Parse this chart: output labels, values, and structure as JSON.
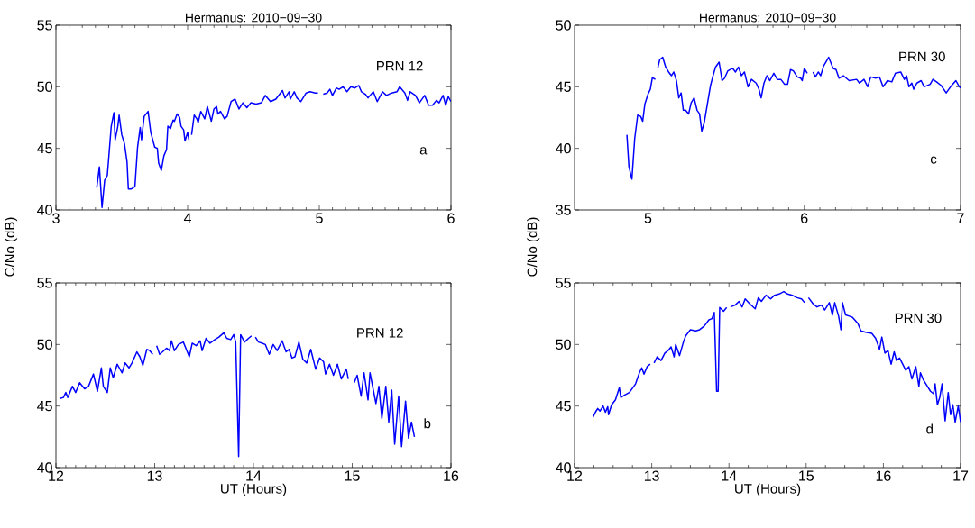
{
  "chart_data": [
    {
      "type": "line",
      "title": "Hermanus: 2010−09−30",
      "ylabel": "C/No (dB)",
      "annotations": [
        "PRN 12",
        "a"
      ],
      "color": "#0000ff",
      "xlim": [
        3,
        6
      ],
      "ylim": [
        40,
        55
      ],
      "xticks": [
        3,
        4,
        5,
        6
      ],
      "yticks": [
        40,
        45,
        50,
        55
      ],
      "x": [
        3.31,
        3.33,
        3.35,
        3.37,
        3.39,
        3.4,
        3.42,
        3.44,
        3.45,
        3.47,
        3.48,
        3.5,
        3.52,
        3.54,
        3.55,
        3.57,
        3.6,
        3.62,
        3.64,
        3.65,
        3.67,
        3.7,
        3.72,
        3.75,
        3.77,
        3.78,
        3.8,
        3.82,
        3.84,
        3.85,
        3.87,
        3.89,
        3.9,
        3.92,
        3.94,
        3.95,
        3.97,
        3.98,
        4.0,
        4.01,
        null,
        4.03,
        4.05,
        4.07,
        4.08,
        4.1,
        4.13,
        4.15,
        4.18,
        4.2,
        4.22,
        4.23,
        4.25,
        4.28,
        4.3,
        4.33,
        4.36,
        4.39,
        4.42,
        4.45,
        4.48,
        4.52,
        4.56,
        4.59,
        4.63,
        4.67,
        4.72,
        4.74,
        4.77,
        4.78,
        4.81,
        4.83,
        4.86,
        4.9,
        4.93,
        4.97,
        4.99,
        null,
        5.03,
        5.06,
        5.08,
        5.1,
        5.13,
        5.15,
        5.18,
        5.21,
        5.24,
        5.27,
        5.3,
        5.32,
        5.35,
        5.37,
        5.41,
        5.44,
        5.48,
        5.51,
        5.55,
        5.59,
        5.61,
        5.65,
        5.67,
        5.69,
        5.73,
        5.76,
        5.8,
        5.83,
        5.86,
        5.89,
        5.91,
        5.94,
        5.96,
        5.98,
        6.0
      ],
      "values": [
        41.8,
        43.5,
        40.2,
        42.4,
        42.8,
        44.1,
        46.8,
        47.9,
        45.7,
        46.8,
        47.7,
        46.1,
        45.4,
        43.9,
        41.7,
        41.7,
        41.9,
        45.1,
        46.7,
        45.7,
        47.6,
        48.0,
        46.3,
        45.1,
        45.0,
        43.8,
        43.2,
        44.4,
        44.9,
        46.8,
        46.6,
        47.3,
        47.2,
        47.8,
        47.5,
        46.8,
        46.5,
        45.6,
        46.3,
        45.7,
        null,
        46.1,
        47.7,
        47.4,
        47.1,
        48.0,
        47.4,
        48.4,
        47.2,
        48.2,
        48.4,
        47.8,
        48.0,
        47.4,
        47.6,
        48.8,
        49.0,
        48.2,
        48.7,
        48.3,
        48.7,
        48.6,
        48.7,
        49.3,
        48.8,
        49.0,
        49.7,
        49.1,
        49.6,
        49.0,
        49.6,
        49.1,
        48.8,
        49.5,
        49.6,
        49.5,
        49.5,
        null,
        49.4,
        49.5,
        49.8,
        49.3,
        49.9,
        49.8,
        50.0,
        49.6,
        50.0,
        49.9,
        50.1,
        49.6,
        49.4,
        49.1,
        49.6,
        48.8,
        49.6,
        49.3,
        49.5,
        49.6,
        50.0,
        49.5,
        48.9,
        49.6,
        49.3,
        48.7,
        49.3,
        48.5,
        48.5,
        48.9,
        48.7,
        49.3,
        48.5,
        49.2,
        48.8
      ]
    },
    {
      "type": "line",
      "title": "Hermanus: 2010−09−30",
      "ylabel": "C/No (dB)",
      "annotations": [
        "PRN 30",
        "c"
      ],
      "color": "#0000ff",
      "xlim": [
        4.53,
        7
      ],
      "ylim": [
        35,
        50
      ],
      "xticks": [
        5,
        6,
        7
      ],
      "yticks": [
        35,
        40,
        45,
        50
      ],
      "x": [
        4.865,
        4.878,
        4.897,
        4.915,
        4.934,
        4.953,
        4.966,
        4.98,
        5.0,
        5.015,
        5.028,
        5.047,
        null,
        5.062,
        5.075,
        5.094,
        5.113,
        5.132,
        5.15,
        5.165,
        5.182,
        5.197,
        5.212,
        5.226,
        5.24,
        5.26,
        5.276,
        5.295,
        5.314,
        5.33,
        5.344,
        5.36,
        5.38,
        5.4,
        5.414,
        5.432,
        5.455,
        5.474,
        5.49,
        5.511,
        5.541,
        5.56,
        5.579,
        5.598,
        5.617,
        5.64,
        5.662,
        5.692,
        5.71,
        5.724,
        5.742,
        5.761,
        5.78,
        5.805,
        5.827,
        5.85,
        5.874,
        5.893,
        5.912,
        5.93,
        5.955,
        5.977,
        5.987,
        6.0,
        6.019,
        null,
        6.056,
        6.071,
        6.09,
        6.105,
        6.124,
        6.156,
        6.184,
        6.203,
        6.222,
        6.25,
        6.287,
        6.335,
        6.353,
        6.382,
        6.406,
        6.425,
        6.457,
        6.481,
        6.504,
        6.532,
        6.56,
        6.583,
        6.617,
        6.64,
        6.654,
        6.67,
        6.688,
        6.7,
        6.72,
        6.748,
        6.767,
        6.805,
        6.823,
        6.846,
        6.876,
        6.908,
        6.936,
        6.97,
        6.992,
        7.0
      ],
      "values": [
        41.1,
        38.5,
        37.5,
        40.8,
        42.7,
        42.6,
        42.2,
        43.6,
        44.4,
        44.8,
        45.75,
        45.6,
        null,
        46.5,
        47.2,
        47.4,
        46.6,
        46.2,
        45.9,
        46.2,
        45.5,
        44.1,
        44.5,
        43.1,
        43.1,
        42.8,
        43.7,
        44.1,
        43.1,
        42.8,
        41.4,
        42.1,
        43.6,
        45.1,
        45.8,
        46.6,
        47.0,
        45.5,
        45.7,
        46.3,
        46.5,
        46.2,
        46.6,
        45.9,
        46.2,
        45.0,
        45.6,
        45.3,
        44.8,
        44.1,
        45.3,
        45.9,
        45.5,
        46.1,
        45.6,
        45.6,
        45.2,
        45.2,
        46.4,
        46.3,
        45.8,
        45.7,
        45.5,
        46.5,
        46.1,
        null,
        46.2,
        45.8,
        46.2,
        45.9,
        46.7,
        47.4,
        46.5,
        46.4,
        45.7,
        45.9,
        45.5,
        45.6,
        45.3,
        45.6,
        45.0,
        45.8,
        45.7,
        45.8,
        45.0,
        45.5,
        45.4,
        46.1,
        46.2,
        45.6,
        45.9,
        45.0,
        45.3,
        44.8,
        45.3,
        45.5,
        45.0,
        45.2,
        45.6,
        45.4,
        45.1,
        44.5,
        45.0,
        45.5,
        45.0,
        44.9
      ]
    },
    {
      "type": "line",
      "xlabel": "UT (Hours)",
      "annotations": [
        "PRN 12",
        "b"
      ],
      "color": "#0000ff",
      "xlim": [
        12,
        16
      ],
      "ylim": [
        40,
        55
      ],
      "xticks": [
        12,
        13,
        14,
        15,
        16
      ],
      "yticks": [
        40,
        45,
        50,
        55
      ],
      "x": [
        12.036,
        12.076,
        12.1,
        12.12,
        12.167,
        12.2,
        12.24,
        12.29,
        12.33,
        12.38,
        12.42,
        12.46,
        12.48,
        12.52,
        12.55,
        12.58,
        12.62,
        12.67,
        12.7,
        12.74,
        12.77,
        12.82,
        12.85,
        12.88,
        12.92,
        12.95,
        12.98,
        null,
        13.02,
        13.05,
        13.08,
        13.12,
        13.15,
        13.17,
        13.2,
        13.24,
        13.29,
        13.32,
        13.35,
        13.38,
        13.42,
        13.46,
        13.48,
        13.52,
        13.56,
        13.61,
        13.65,
        13.7,
        13.73,
        13.77,
        13.8,
        13.82,
        13.85,
        13.87,
        13.91,
        13.95,
        13.98,
        null,
        14.02,
        14.05,
        14.09,
        14.12,
        14.16,
        14.2,
        14.24,
        14.29,
        14.33,
        14.36,
        14.39,
        14.42,
        14.46,
        14.5,
        14.54,
        14.58,
        14.63,
        14.67,
        14.71,
        14.73,
        14.77,
        14.81,
        14.85,
        14.89,
        14.94,
        14.96,
        null,
        15.02,
        15.05,
        15.09,
        15.12,
        15.16,
        15.18,
        15.24,
        15.27,
        15.3,
        15.34,
        15.37,
        15.4,
        15.43,
        15.47,
        15.5,
        15.54,
        15.57,
        15.6,
        15.63
      ],
      "values": [
        45.6,
        45.7,
        46.1,
        45.7,
        46.6,
        46.1,
        46.9,
        46.4,
        46.6,
        47.6,
        46.2,
        48.1,
        46.6,
        46.1,
        48.1,
        47.3,
        48.4,
        47.7,
        48.5,
        48.1,
        48.5,
        49.4,
        49.0,
        48.3,
        49.6,
        49.5,
        49.2,
        null,
        49.9,
        49.2,
        49.4,
        49.7,
        49.5,
        50.3,
        49.5,
        50.0,
        50.2,
        49.6,
        49.0,
        50.1,
        49.9,
        50.3,
        49.5,
        50.5,
        50.1,
        50.4,
        50.6,
        50.95,
        50.5,
        50.4,
        50.8,
        50.2,
        40.9,
        50.8,
        50.2,
        50.5,
        50.7,
        null,
        50.6,
        50.2,
        50.1,
        50.0,
        49.2,
        50.0,
        49.5,
        50.3,
        49.4,
        49.6,
        48.9,
        49.0,
        50.2,
        48.8,
        48.5,
        49.6,
        48.0,
        48.9,
        48.6,
        47.6,
        48.4,
        47.5,
        48.4,
        47.2,
        48.0,
        47.2,
        null,
        46.9,
        47.5,
        45.8,
        47.7,
        45.5,
        47.7,
        45.2,
        46.6,
        44.0,
        46.6,
        43.7,
        46.3,
        41.9,
        45.8,
        41.7,
        45.4,
        42.4,
        43.7,
        42.5
      ]
    },
    {
      "type": "line",
      "xlabel": "UT (Hours)",
      "annotations": [
        "PRN 30",
        "d"
      ],
      "color": "#0000ff",
      "xlim": [
        12,
        17
      ],
      "ylim": [
        40,
        55
      ],
      "xticks": [
        12,
        13,
        14,
        15,
        16,
        17
      ],
      "yticks": [
        40,
        45,
        50,
        55
      ],
      "x": [
        12.24,
        12.27,
        12.3,
        12.33,
        12.37,
        12.4,
        12.43,
        12.44,
        12.48,
        12.53,
        12.58,
        12.6,
        12.65,
        12.71,
        12.79,
        12.84,
        12.87,
        12.9,
        12.94,
        12.98,
        null,
        13.03,
        13.07,
        13.12,
        13.17,
        13.21,
        13.25,
        13.29,
        13.31,
        13.36,
        13.41,
        13.44,
        13.5,
        13.57,
        13.62,
        13.68,
        13.74,
        13.78,
        13.81,
        13.84,
        13.86,
        13.88,
        13.93,
        13.97,
        null,
        14.02,
        14.08,
        14.13,
        14.17,
        14.21,
        14.27,
        14.34,
        14.38,
        14.42,
        14.48,
        14.54,
        14.59,
        14.65,
        14.71,
        14.76,
        14.82,
        14.88,
        14.94,
        14.98,
        null,
        15.03,
        15.09,
        15.14,
        15.2,
        15.24,
        15.3,
        15.34,
        15.37,
        15.42,
        15.45,
        15.47,
        15.51,
        15.56,
        15.6,
        15.67,
        15.71,
        15.77,
        15.85,
        15.9,
        15.95,
        15.98,
        16.02,
        16.06,
        16.1,
        16.14,
        16.17,
        16.21,
        16.25,
        16.29,
        16.33,
        16.37,
        16.42,
        16.46,
        16.48,
        16.52,
        16.56,
        16.61,
        16.65,
        16.67,
        16.7,
        16.73,
        16.76,
        16.8,
        16.84,
        16.87,
        16.9,
        16.93,
        16.97,
        17.0
      ],
      "values": [
        44.1,
        44.5,
        44.8,
        44.6,
        45.0,
        44.5,
        44.95,
        44.3,
        45.1,
        45.5,
        46.5,
        45.7,
        45.9,
        46.1,
        46.8,
        47.7,
        48.1,
        47.6,
        48.2,
        48.4,
        null,
        48.5,
        49.0,
        48.7,
        49.3,
        49.5,
        49.8,
        49.0,
        50.0,
        49.1,
        50.2,
        50.7,
        51.2,
        51.1,
        51.2,
        51.5,
        52.0,
        52.1,
        52.6,
        46.2,
        46.2,
        53.0,
        52.7,
        53.0,
        null,
        53.05,
        53.2,
        53.5,
        53.05,
        53.7,
        53.3,
        52.9,
        53.8,
        53.5,
        54.0,
        53.7,
        54.0,
        54.1,
        54.3,
        54.1,
        54.0,
        53.8,
        53.7,
        53.4,
        null,
        53.8,
        53.3,
        53.05,
        53.2,
        52.8,
        53.4,
        52.4,
        53.4,
        52.3,
        51.2,
        53.4,
        52.4,
        52.3,
        52.2,
        51.7,
        51.1,
        51.0,
        50.9,
        50.5,
        49.6,
        50.6,
        49.3,
        49.5,
        48.4,
        49.4,
        48.7,
        48.9,
        48.4,
        47.9,
        48.2,
        47.2,
        48.2,
        46.6,
        47.7,
        47.1,
        46.7,
        46.2,
        46.0,
        46.8,
        45.1,
        45.7,
        46.8,
        43.8,
        46.1,
        44.3,
        45.1,
        43.7,
        45.0,
        43.7
      ]
    }
  ]
}
